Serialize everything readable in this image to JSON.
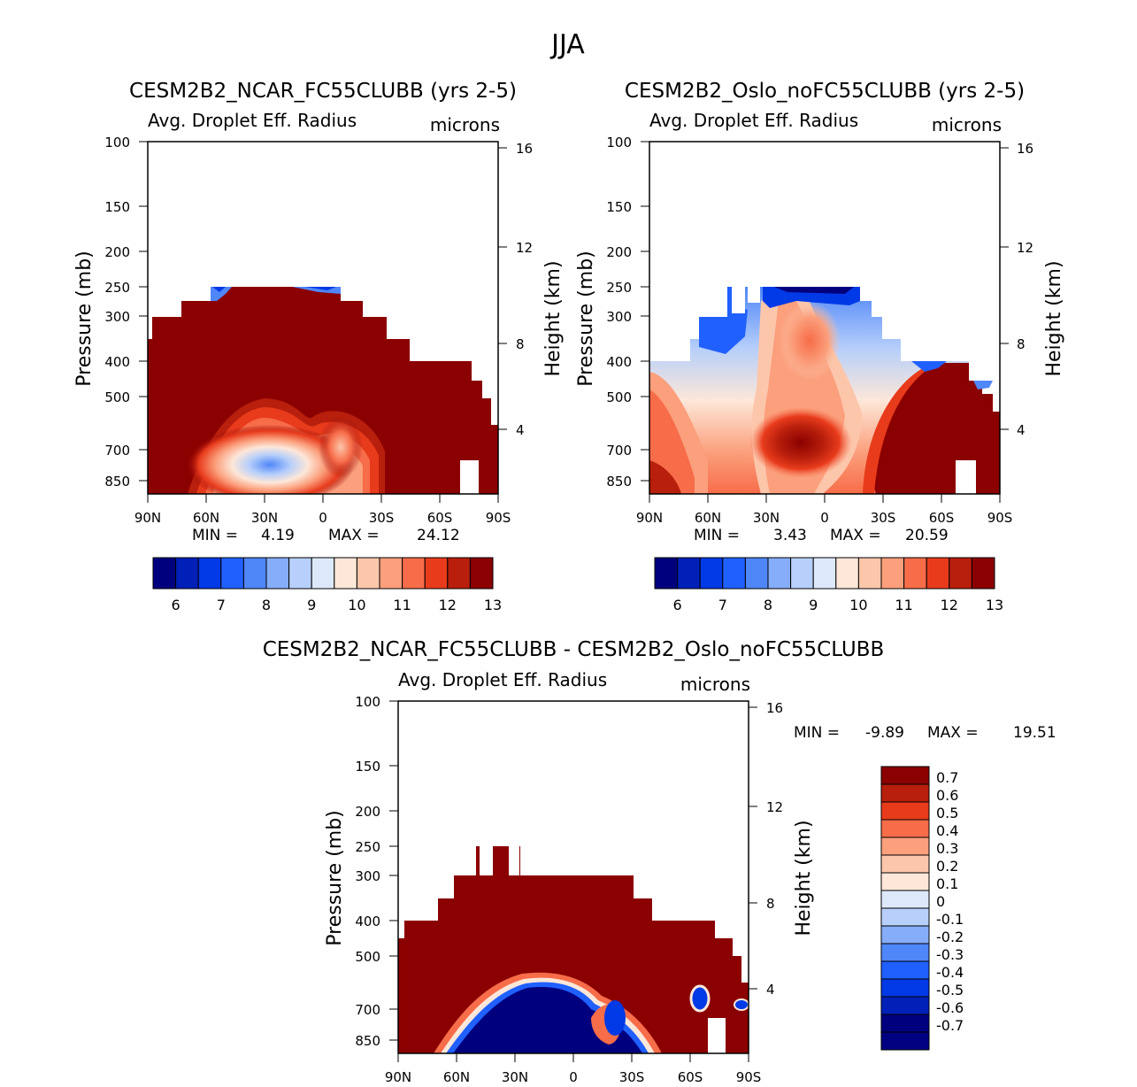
{
  "figure_title": "JJA",
  "chart_data": [
    {
      "type": "contour",
      "title": "CESM2B2_NCAR_FC55CLUBB (yrs 2-5)",
      "left_subtitle": "Avg. Droplet Eff. Radius",
      "right_subtitle": "microns",
      "xlabel": "",
      "ylabel": "Pressure (mb)",
      "y2label": "Height (km)",
      "x_ticks": [
        "90N",
        "60N",
        "30N",
        "0",
        "30S",
        "60S",
        "90S"
      ],
      "y_ticks": [
        "100",
        "150",
        "200",
        "250",
        "300",
        "400",
        "500",
        "700",
        "850"
      ],
      "y2_ticks": [
        "16",
        "12",
        "8",
        "4"
      ],
      "min_label": "MIN =",
      "min": "4.19",
      "max_label": "MAX =",
      "max": "24.12",
      "colorbar_ticks": [
        "6",
        "7",
        "8",
        "9",
        "10",
        "11",
        "12",
        "13"
      ],
      "colorbar_colors": [
        "#00007f",
        "#0020b8",
        "#0039e6",
        "#2060ff",
        "#4f86f8",
        "#86adf9",
        "#b7cffa",
        "#dde9fb",
        "#fde7d9",
        "#fcc6ab",
        "#fb9f7c",
        "#f76c49",
        "#e83b1c",
        "#b81f0c",
        "#8b0000"
      ]
    },
    {
      "type": "contour",
      "title": "CESM2B2_Oslo_noFC55CLUBB (yrs 2-5)",
      "left_subtitle": "Avg. Droplet Eff. Radius",
      "right_subtitle": "microns",
      "xlabel": "",
      "ylabel": "Pressure (mb)",
      "y2label": "Height (km)",
      "x_ticks": [
        "90N",
        "60N",
        "30N",
        "0",
        "30S",
        "60S",
        "90S"
      ],
      "y_ticks": [
        "100",
        "150",
        "200",
        "250",
        "300",
        "400",
        "500",
        "700",
        "850"
      ],
      "y2_ticks": [
        "16",
        "12",
        "8",
        "4"
      ],
      "min_label": "MIN =",
      "min": "3.43",
      "max_label": "MAX =",
      "max": "20.59",
      "colorbar_ticks": [
        "6",
        "7",
        "8",
        "9",
        "10",
        "11",
        "12",
        "13"
      ],
      "colorbar_colors": [
        "#00007f",
        "#0020b8",
        "#0039e6",
        "#2060ff",
        "#4f86f8",
        "#86adf9",
        "#b7cffa",
        "#dde9fb",
        "#fde7d9",
        "#fcc6ab",
        "#fb9f7c",
        "#f76c49",
        "#e83b1c",
        "#b81f0c",
        "#8b0000"
      ]
    },
    {
      "type": "contour",
      "title": "CESM2B2_NCAR_FC55CLUBB - CESM2B2_Oslo_noFC55CLUBB",
      "left_subtitle": "Avg. Droplet Eff. Radius",
      "right_subtitle": "microns",
      "xlabel": "",
      "ylabel": "Pressure (mb)",
      "y2label": "Height (km)",
      "x_ticks": [
        "90N",
        "60N",
        "30N",
        "0",
        "30S",
        "60S",
        "90S"
      ],
      "y_ticks": [
        "100",
        "150",
        "200",
        "250",
        "300",
        "400",
        "500",
        "700",
        "850"
      ],
      "y2_ticks": [
        "16",
        "12",
        "8",
        "4"
      ],
      "min_label": "MIN =",
      "min": "-9.89",
      "max_label": "MAX =",
      "max": "19.51",
      "colorbar_ticks": [
        "0.7",
        "0.6",
        "0.5",
        "0.4",
        "0.3",
        "0.2",
        "0.1",
        "0",
        "-0.1",
        "-0.2",
        "-0.3",
        "-0.4",
        "-0.5",
        "-0.6",
        "-0.7"
      ],
      "colorbar_colors": [
        "#8b0000",
        "#b81f0c",
        "#e83b1c",
        "#f76c49",
        "#fb9f7c",
        "#fcc6ab",
        "#fde7d9",
        "#dde9fb",
        "#b7cffa",
        "#86adf9",
        "#4f86f8",
        "#2060ff",
        "#0039e6",
        "#0020b8",
        "#00007f",
        "#000080"
      ]
    }
  ]
}
